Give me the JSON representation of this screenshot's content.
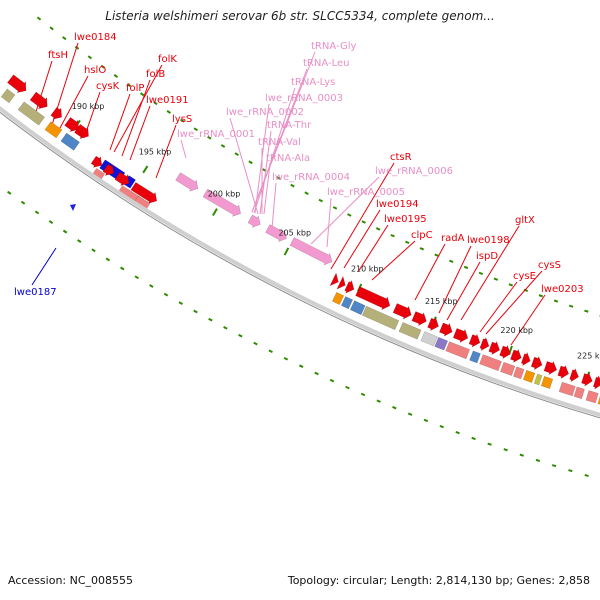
{
  "title": "Listeria welshimeri serovar 6b str. SLCC5334, complete genom...",
  "accession": "Accession: NC_008555",
  "summary": "Topology: circular; Length: 2,814,130 bp; Genes: 2,858",
  "colors": {
    "cds": "#e8000b",
    "rna": "#f29ad0",
    "rna_label": "#e88fc6",
    "feature_label": "#e8000b",
    "selected": "#0000cc",
    "tick": "#2e8b00",
    "backbone": "#cfcfcf"
  },
  "scale": {
    "ticks": [
      {
        "label": "190 kbp",
        "kbp": 190
      },
      {
        "label": "195 kbp",
        "kbp": 195
      },
      {
        "label": "200 kbp",
        "kbp": 200
      },
      {
        "label": "205 kbp",
        "kbp": 205
      },
      {
        "label": "210 kbp",
        "kbp": 210
      },
      {
        "label": "215 kbp",
        "kbp": 215
      },
      {
        "label": "220 kbp",
        "kbp": 220
      },
      {
        "label": "225 kbp",
        "kbp": 225
      }
    ]
  },
  "gene_labels": [
    {
      "name": "ftsH",
      "type": "cds"
    },
    {
      "name": "lwe0184",
      "type": "cds"
    },
    {
      "name": "hslO",
      "type": "cds"
    },
    {
      "name": "cysK",
      "type": "cds"
    },
    {
      "name": "folK",
      "type": "cds"
    },
    {
      "name": "folB",
      "type": "cds"
    },
    {
      "name": "folP",
      "type": "cds"
    },
    {
      "name": "lwe0191",
      "type": "cds"
    },
    {
      "name": "lysS",
      "type": "cds"
    },
    {
      "name": "tRNA-Gly",
      "type": "rna"
    },
    {
      "name": "tRNA-Leu",
      "type": "rna"
    },
    {
      "name": "tRNA-Lys",
      "type": "rna"
    },
    {
      "name": "lwe_rRNA_0003",
      "type": "rna"
    },
    {
      "name": "lwe_rRNA_0002",
      "type": "rna"
    },
    {
      "name": "tRNA-Thr",
      "type": "rna"
    },
    {
      "name": "lwe_rRNA_0001",
      "type": "rna"
    },
    {
      "name": "tRNA-Val",
      "type": "rna"
    },
    {
      "name": "tRNA-Ala",
      "type": "rna"
    },
    {
      "name": "lwe_rRNA_0004",
      "type": "rna"
    },
    {
      "name": "ctsR",
      "type": "cds"
    },
    {
      "name": "lwe_rRNA_0006",
      "type": "rna"
    },
    {
      "name": "lwe_rRNA_0005",
      "type": "rna"
    },
    {
      "name": "lwe0194",
      "type": "cds"
    },
    {
      "name": "lwe0195",
      "type": "cds"
    },
    {
      "name": "clpC",
      "type": "cds"
    },
    {
      "name": "radA",
      "type": "cds"
    },
    {
      "name": "lwe0198",
      "type": "cds"
    },
    {
      "name": "gltX",
      "type": "cds"
    },
    {
      "name": "ispD",
      "type": "cds"
    },
    {
      "name": "cysS",
      "type": "cds"
    },
    {
      "name": "cysE",
      "type": "cds"
    },
    {
      "name": "lwe0203",
      "type": "cds"
    },
    {
      "name": "lwe0187",
      "type": "selected"
    }
  ]
}
